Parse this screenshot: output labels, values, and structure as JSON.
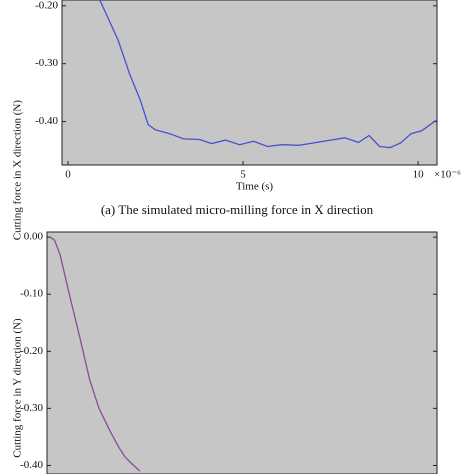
{
  "chart_data": [
    {
      "type": "line",
      "y_label": "Cutting force in X direction (N)",
      "x_label": "Time (s)",
      "x_multiplier": "×10⁻⁶",
      "caption": "(a) The simulated micro-milling force in X direction",
      "xlim": [
        -0.17,
        10.54
      ],
      "ylim": [
        -0.475,
        -0.19
      ],
      "xticks": [
        0,
        5,
        10
      ],
      "yticks": [
        {
          "value": -0.2,
          "label": "-0.20"
        },
        {
          "value": -0.3,
          "label": "-0.30"
        },
        {
          "value": -0.4,
          "label": "-0.40"
        }
      ],
      "background": "#c6c6c6",
      "series": [
        {
          "color": "#4a4fd0",
          "x": [
            0.91,
            1.43,
            1.77,
            2.06,
            2.29,
            2.49,
            2.91,
            3.3,
            3.77,
            4.1,
            4.5,
            4.9,
            5.3,
            5.7,
            6.1,
            6.6,
            7.0,
            7.5,
            7.9,
            8.3,
            8.6,
            8.9,
            9.2,
            9.5,
            9.8,
            10.1,
            10.54
          ],
          "values": [
            -0.19,
            -0.259,
            -0.319,
            -0.362,
            -0.405,
            -0.414,
            -0.421,
            -0.43,
            -0.431,
            -0.438,
            -0.432,
            -0.44,
            -0.434,
            -0.443,
            -0.44,
            -0.441,
            -0.437,
            -0.432,
            -0.428,
            -0.436,
            -0.424,
            -0.443,
            -0.445,
            -0.437,
            -0.421,
            -0.416,
            -0.397
          ]
        }
      ]
    },
    {
      "type": "line",
      "y_label": "Cutting force in Y direction (N)",
      "xlim": [
        0,
        10.5
      ],
      "ylim": [
        -0.415,
        0.009
      ],
      "yticks": [
        {
          "value": 0,
          "label": "0.00"
        },
        {
          "value": -0.1,
          "label": "-0.10"
        },
        {
          "value": -0.2,
          "label": "-0.20"
        },
        {
          "value": -0.3,
          "label": "-0.30"
        },
        {
          "value": -0.4,
          "label": "-0.40"
        }
      ],
      "background": "#c6c6c6",
      "series": [
        {
          "color": "#8a4c9c",
          "x": [
            0.08,
            0.2,
            0.35,
            0.6,
            0.9,
            1.15,
            1.4,
            1.7,
            1.95,
            2.1,
            2.25,
            2.5
          ],
          "values": [
            0.0,
            -0.005,
            -0.03,
            -0.1,
            -0.18,
            -0.25,
            -0.3,
            -0.34,
            -0.37,
            -0.385,
            -0.395,
            -0.41
          ]
        }
      ]
    }
  ]
}
